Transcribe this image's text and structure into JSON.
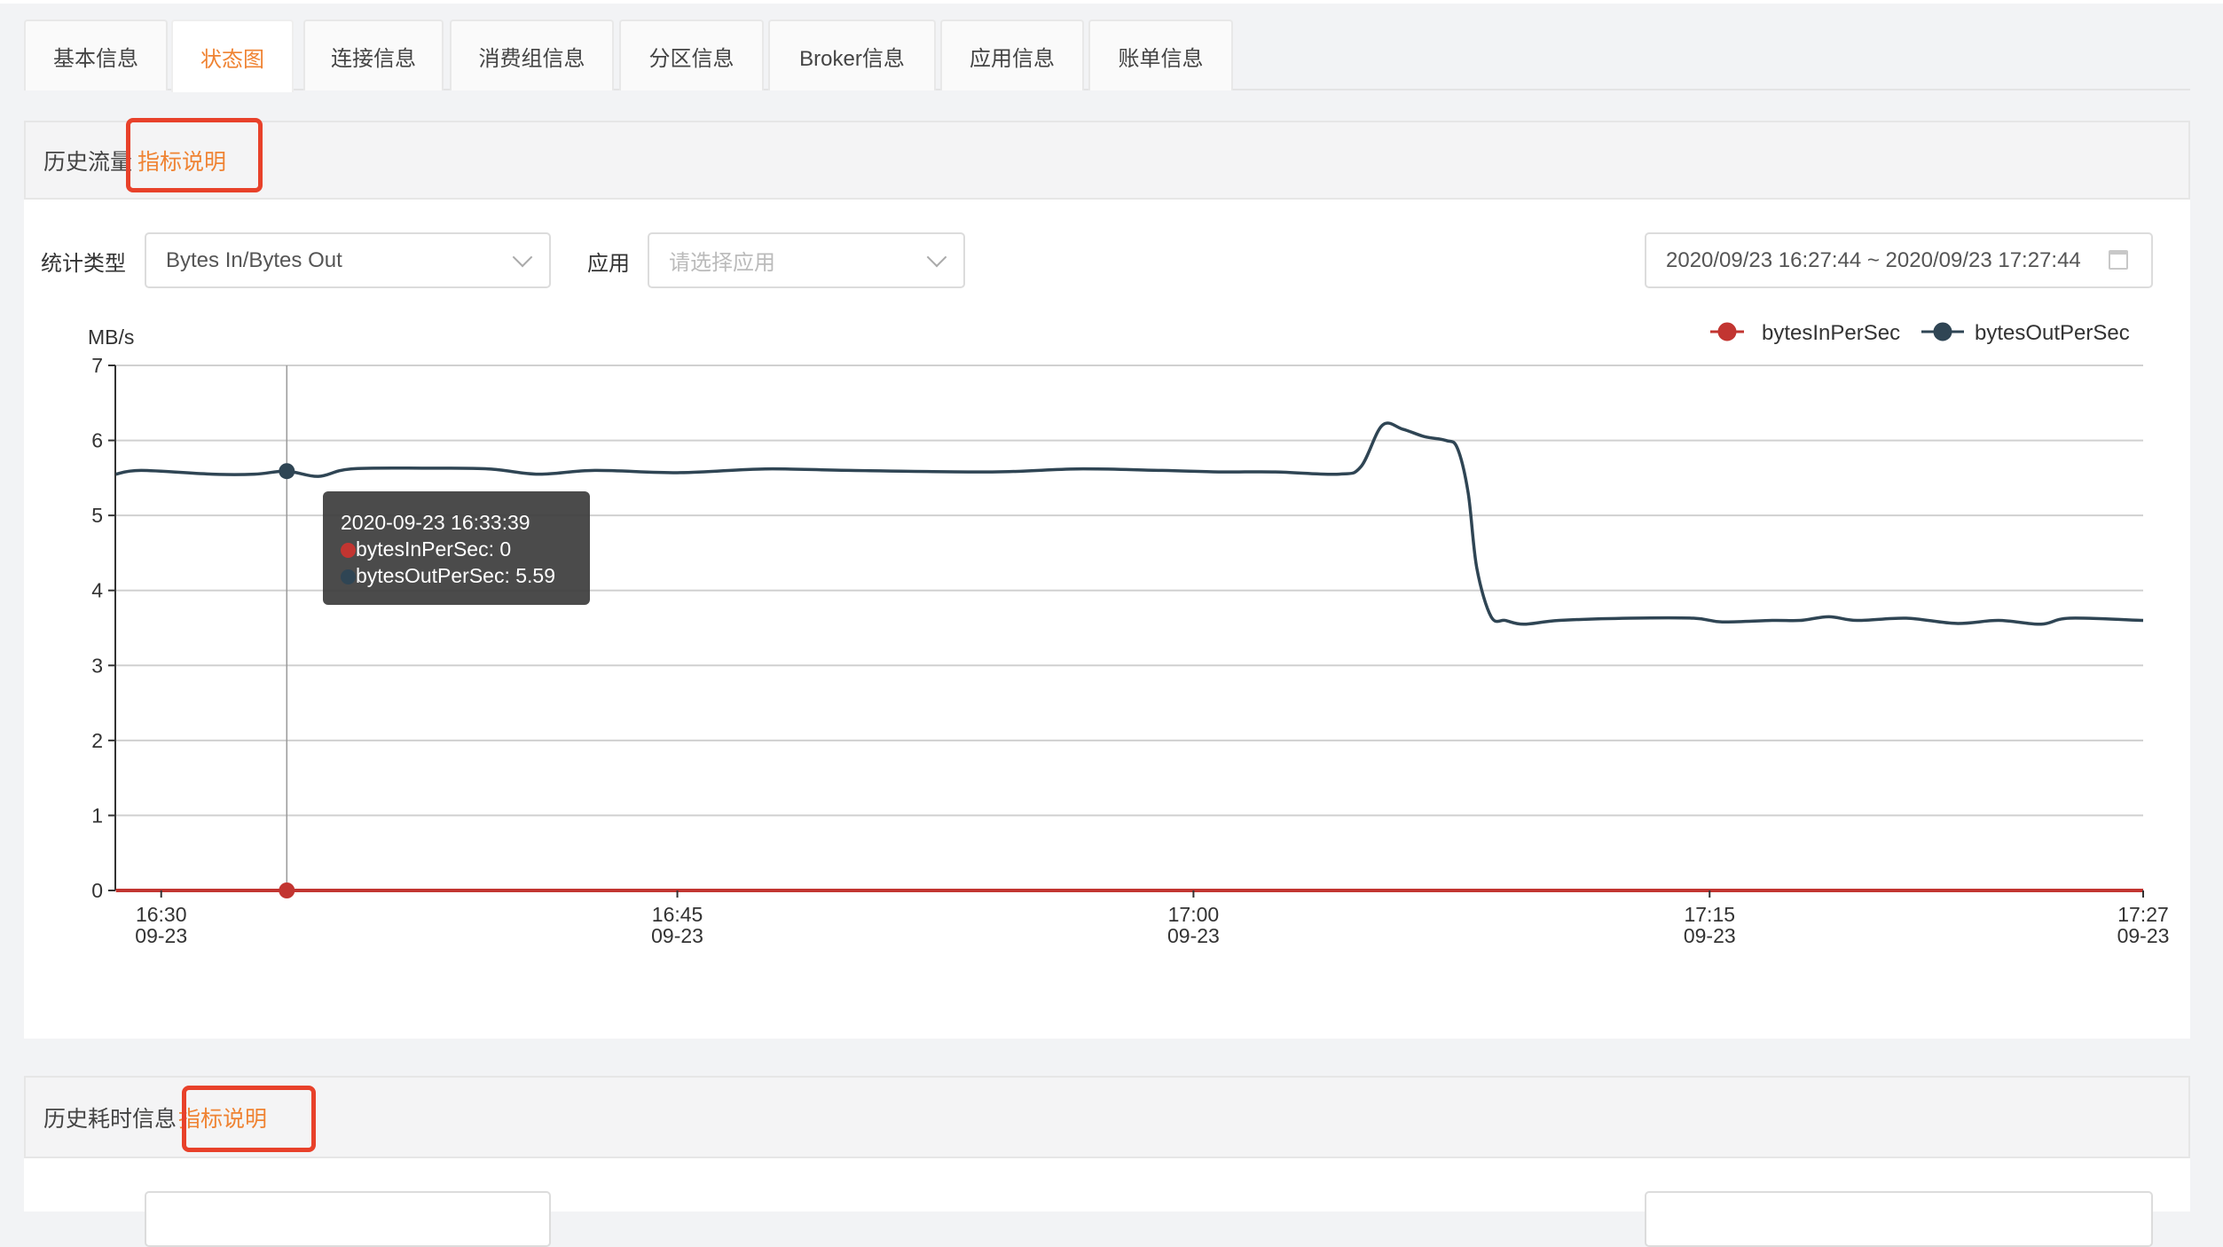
{
  "tabs": [
    {
      "label": "基本信息"
    },
    {
      "label": "状态图",
      "active": true
    },
    {
      "label": "连接信息"
    },
    {
      "label": "消费组信息"
    },
    {
      "label": "分区信息"
    },
    {
      "label": "Broker信息"
    },
    {
      "label": "应用信息"
    },
    {
      "label": "账单信息"
    }
  ],
  "traffic": {
    "title": "历史流量",
    "help_link": "指标说明",
    "stat_type_label": "统计类型",
    "stat_type_value": "Bytes In/Bytes Out",
    "app_label": "应用",
    "app_placeholder": "请选择应用",
    "date_range": "2020/09/23 16:27:44 ~ 2020/09/23 17:27:44",
    "tooltip": {
      "time": "2020-09-23 16:33:39",
      "in_label": "bytesInPerSec: 0",
      "out_label": "bytesOutPerSec: 5.59"
    }
  },
  "latency": {
    "title": "历史耗时信息",
    "help_link": "指标说明"
  },
  "colors": {
    "accent": "#ef8333",
    "highlight": "#e8412a",
    "bytesIn": "#c23531",
    "bytesOut": "#2f4554"
  },
  "chart_data": {
    "type": "line",
    "ylabel": "MB/s",
    "ylim": [
      0,
      7
    ],
    "yticks": [
      "0",
      "1",
      "2",
      "3",
      "4",
      "5",
      "6",
      "7"
    ],
    "xlim": [
      "16:28:40",
      "17:27:36"
    ],
    "xticks": [
      {
        "t": "16:30:00",
        "label": "16:30",
        "sub": "09-23"
      },
      {
        "t": "16:45:00",
        "label": "16:45",
        "sub": "09-23"
      },
      {
        "t": "17:00:00",
        "label": "17:00",
        "sub": "09-23"
      },
      {
        "t": "17:15:00",
        "label": "17:15",
        "sub": "09-23"
      },
      {
        "t": "17:27:36",
        "label": "17:27",
        "sub": "09-23"
      }
    ],
    "grid": true,
    "legend": "top-right",
    "x": [
      "16:28:41",
      "16:29:25",
      "16:31:29",
      "16:32:43",
      "16:33:39",
      "16:34:34",
      "16:35:31",
      "16:37:40",
      "16:39:31",
      "16:40:58",
      "16:42:36",
      "16:45:05",
      "16:47:33",
      "16:50:01",
      "16:54:09",
      "16:56:37",
      "16:59:05",
      "17:00:44",
      "17:02:23",
      "17:04:14",
      "17:04:52",
      "17:05:29",
      "17:06:05",
      "17:06:43",
      "17:07:20",
      "17:07:40",
      "17:07:59",
      "17:08:14",
      "17:08:39",
      "17:09:04",
      "17:09:36",
      "17:10:38",
      "17:12:41",
      "17:14:32",
      "17:15:22",
      "17:16:49",
      "17:17:38",
      "17:18:28",
      "17:19:17",
      "17:20:43",
      "17:22:10",
      "17:23:24",
      "17:24:38",
      "17:25:28",
      "17:27:36"
    ],
    "series": [
      {
        "name": "bytesInPerSec",
        "values": [
          0,
          0,
          0,
          0,
          0,
          0,
          0,
          0,
          0,
          0,
          0,
          0,
          0,
          0,
          0,
          0,
          0,
          0,
          0,
          0,
          0,
          0,
          0,
          0,
          0,
          0,
          0,
          0,
          0,
          0,
          0,
          0,
          0,
          0,
          0,
          0,
          0,
          0,
          0,
          0,
          0,
          0,
          0,
          0,
          0
        ]
      },
      {
        "name": "bytesOutPerSec",
        "values": [
          5.55,
          5.6,
          5.55,
          5.55,
          5.59,
          5.52,
          5.62,
          5.63,
          5.62,
          5.55,
          5.6,
          5.57,
          5.62,
          5.6,
          5.58,
          5.62,
          5.6,
          5.58,
          5.58,
          5.55,
          5.65,
          6.2,
          6.15,
          6.05,
          6.0,
          5.9,
          5.3,
          4.3,
          3.65,
          3.6,
          3.55,
          3.6,
          3.63,
          3.63,
          3.58,
          3.6,
          3.6,
          3.65,
          3.6,
          3.63,
          3.56,
          3.6,
          3.55,
          3.63,
          3.6
        ]
      }
    ],
    "hover": {
      "t": "16:33:39"
    }
  }
}
